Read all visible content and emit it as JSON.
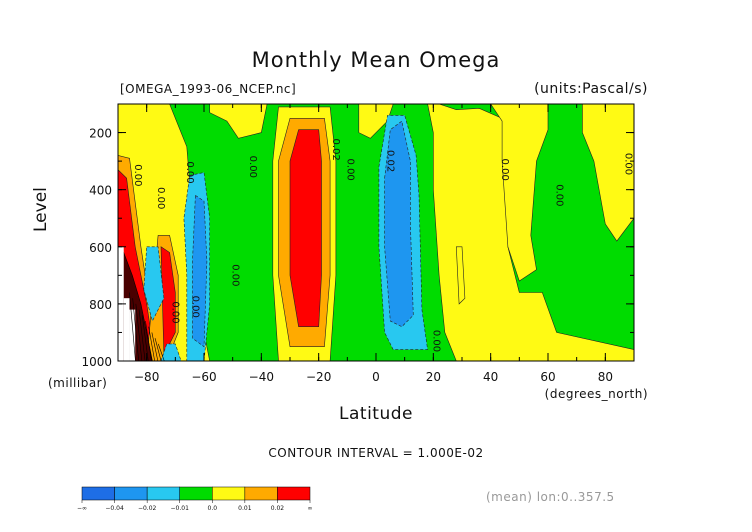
{
  "chart_data": {
    "type": "contour",
    "title": "Monthly Mean Omega",
    "file_label": "[OMEGA_1993-06_NCEP.nc]",
    "units_label": "(units:Pascal/s)",
    "ylabel": "Level",
    "ylabel_units": "(millibar)",
    "xlabel": "Latitude",
    "xlabel_units": "(degrees_north)",
    "xlim": [
      -90,
      90
    ],
    "ylim": [
      1000,
      100
    ],
    "x_ticks": [
      -80,
      -60,
      -40,
      -20,
      0,
      20,
      40,
      60,
      80
    ],
    "x_tick_labels": [
      "-80",
      "-60",
      "-40",
      "-20",
      "0",
      "20",
      "40",
      "60",
      "80"
    ],
    "y_ticks": [
      200,
      400,
      600,
      800,
      1000
    ],
    "y_tick_labels": [
      "200",
      "400",
      "600",
      "800",
      "1000"
    ],
    "contour_interval_text": "CONTOUR INTERVAL = 1.000E-02",
    "mean_text": "(mean) lon:0..357.5",
    "levels": [
      -0.04,
      -0.02,
      -0.01,
      0.0,
      0.01,
      0.02
    ],
    "colorbar": {
      "colors": [
        "#1e6ee6",
        "#1e96f0",
        "#28c8f0",
        "#00dc00",
        "#fffa14",
        "#ffaa00",
        "#ff0000"
      ],
      "labels": [
        "-∞",
        "-0.04",
        "-0.02",
        "-0.01",
        "0.0",
        "0.01",
        "0.02",
        "∞"
      ]
    },
    "bands": [
      {
        "range": [
          0.0,
          0.01
        ],
        "color": "#fffa14",
        "poly": [
          [
            -90,
            100
          ],
          [
            -72,
            100
          ],
          [
            -66,
            250
          ],
          [
            -64,
            500
          ],
          [
            -60,
            900
          ],
          [
            -58,
            1000
          ],
          [
            -90,
            1000
          ]
        ]
      },
      {
        "range": [
          0.0,
          0.01
        ],
        "color": "#fffa14",
        "poly": [
          [
            -58,
            100
          ],
          [
            -38,
            100
          ],
          [
            -40,
            200
          ],
          [
            -48,
            220
          ],
          [
            -52,
            160
          ],
          [
            -58,
            130
          ]
        ]
      },
      {
        "range": [
          0.0,
          0.01
        ],
        "color": "#fffa14",
        "poly": [
          [
            -6,
            100
          ],
          [
            6,
            100
          ],
          [
            4,
            160
          ],
          [
            -2,
            220
          ],
          [
            -6,
            200
          ]
        ]
      },
      {
        "range": [
          0.0,
          0.01
        ],
        "color": "#fffa14",
        "poly": [
          [
            18,
            100
          ],
          [
            22,
            100
          ],
          [
            28,
            120
          ],
          [
            36,
            115
          ],
          [
            44,
            150
          ],
          [
            46,
            250
          ],
          [
            46,
            600
          ],
          [
            50,
            760
          ],
          [
            58,
            760
          ],
          [
            63,
            900
          ],
          [
            90,
            960
          ],
          [
            90,
            1000
          ],
          [
            28,
            1000
          ],
          [
            24,
            900
          ],
          [
            22,
            700
          ],
          [
            20,
            400
          ],
          [
            20,
            200
          ]
        ]
      },
      {
        "range": [
          0.0,
          0.01
        ],
        "color": "#fffa14",
        "poly": [
          [
            40,
            100
          ],
          [
            60,
            100
          ],
          [
            60,
            190
          ],
          [
            56,
            300
          ],
          [
            54,
            560
          ],
          [
            56,
            680
          ],
          [
            50,
            720
          ],
          [
            46,
            600
          ],
          [
            44,
            300
          ],
          [
            44,
            160
          ]
        ]
      },
      {
        "range": [
          0.0,
          0.01
        ],
        "color": "#fffa14",
        "poly": [
          [
            72,
            100
          ],
          [
            90,
            100
          ],
          [
            90,
            500
          ],
          [
            84,
            580
          ],
          [
            80,
            520
          ],
          [
            76,
            300
          ],
          [
            72,
            200
          ]
        ]
      },
      {
        "range": [
          0.0,
          0.01
        ],
        "color": "#fffa14",
        "poly": [
          [
            -34,
            110
          ],
          [
            -16,
            110
          ],
          [
            -14,
            300
          ],
          [
            -14,
            700
          ],
          [
            -16,
            1000
          ],
          [
            -34,
            1000
          ],
          [
            -36,
            700
          ],
          [
            -36,
            300
          ]
        ]
      },
      {
        "range": [
          0.01,
          0.02
        ],
        "color": "#ffaa00",
        "poly": [
          [
            -30,
            150
          ],
          [
            -18,
            150
          ],
          [
            -16,
            300
          ],
          [
            -16,
            700
          ],
          [
            -18,
            950
          ],
          [
            -30,
            950
          ],
          [
            -34,
            700
          ],
          [
            -34,
            300
          ]
        ]
      },
      {
        "range": [
          0.02,
          0.03
        ],
        "color": "#ff0000",
        "poly": [
          [
            -27,
            190
          ],
          [
            -20,
            190
          ],
          [
            -19,
            300
          ],
          [
            -19,
            700
          ],
          [
            -20,
            880
          ],
          [
            -27,
            880
          ],
          [
            -30,
            700
          ],
          [
            -30,
            300
          ]
        ]
      },
      {
        "range": [
          0.01,
          0.02
        ],
        "color": "#ffaa00",
        "poly": [
          [
            -90,
            280
          ],
          [
            -86,
            290
          ],
          [
            -82,
            600
          ],
          [
            -79,
            800
          ],
          [
            -75,
            1000
          ],
          [
            -90,
            1000
          ]
        ]
      },
      {
        "range": [
          0.02,
          0.03
        ],
        "color": "#ff0000",
        "poly": [
          [
            -90,
            330
          ],
          [
            -87,
            360
          ],
          [
            -84,
            600
          ],
          [
            -80,
            800
          ],
          [
            -77,
            1000
          ],
          [
            -90,
            1000
          ]
        ]
      },
      {
        "range": [
          0.01,
          0.02
        ],
        "color": "#ffaa00",
        "poly": [
          [
            -76,
            560
          ],
          [
            -72,
            560
          ],
          [
            -69,
            700
          ],
          [
            -69,
            900
          ],
          [
            -73,
            1000
          ],
          [
            -80,
            1000
          ]
        ]
      },
      {
        "range": [
          0.02,
          0.03
        ],
        "color": "#ff0000",
        "poly": [
          [
            -75,
            600
          ],
          [
            -72,
            620
          ],
          [
            -70,
            760
          ],
          [
            -70,
            900
          ],
          [
            -74,
            980
          ]
        ]
      },
      {
        "range": [
          -0.01,
          0.0
        ],
        "color": "#28c8f0",
        "poly": [
          [
            -65,
            350
          ],
          [
            -60,
            340
          ],
          [
            -58,
            500
          ],
          [
            -58,
            800
          ],
          [
            -60,
            1000
          ],
          [
            -66,
            1000
          ],
          [
            -66,
            700
          ],
          [
            -67,
            500
          ]
        ]
      },
      {
        "range": [
          -0.02,
          -0.01
        ],
        "color": "#1e96f0",
        "poly": [
          [
            -63,
            420
          ],
          [
            -60,
            440
          ],
          [
            -59,
            650
          ],
          [
            -60,
            950
          ],
          [
            -64,
            920
          ],
          [
            -64,
            650
          ]
        ]
      },
      {
        "range": [
          -0.01,
          0.0
        ],
        "color": "#28c8f0",
        "poly": [
          [
            -80,
            600
          ],
          [
            -76,
            600
          ],
          [
            -74,
            780
          ],
          [
            -78,
            860
          ],
          [
            -81,
            750
          ]
        ]
      },
      {
        "range": [
          -0.01,
          0.0
        ],
        "color": "#28c8f0",
        "poly": [
          [
            -75,
            1000
          ],
          [
            -73,
            940
          ],
          [
            -70,
            940
          ],
          [
            -68,
            1000
          ]
        ]
      },
      {
        "range": [
          -0.01,
          0.0
        ],
        "color": "#28c8f0",
        "poly": [
          [
            1,
            320
          ],
          [
            4,
            140
          ],
          [
            10,
            140
          ],
          [
            14,
            280
          ],
          [
            15,
            420
          ],
          [
            16,
            820
          ],
          [
            18,
            960
          ],
          [
            6,
            960
          ],
          [
            3,
            900
          ],
          [
            1,
            600
          ]
        ]
      },
      {
        "range": [
          -0.02,
          -0.01
        ],
        "color": "#1e96f0",
        "poly": [
          [
            3,
            360
          ],
          [
            5,
            190
          ],
          [
            9,
            160
          ],
          [
            12,
            300
          ],
          [
            12,
            520
          ],
          [
            13,
            840
          ],
          [
            9,
            880
          ],
          [
            5,
            860
          ],
          [
            3,
            600
          ]
        ]
      },
      {
        "range": [
          0.0,
          0.01
        ],
        "color": "#fffa14",
        "poly": [
          [
            28,
            600
          ],
          [
            30,
            600
          ],
          [
            31,
            780
          ],
          [
            29,
            800
          ]
        ]
      }
    ],
    "contour_labels": [
      {
        "text": "0.00",
        "lat": -84,
        "lev": 350
      },
      {
        "text": "0.00",
        "lat": -76,
        "lev": 430
      },
      {
        "text": "0.00",
        "lat": -66,
        "lev": 340
      },
      {
        "text": "0.00",
        "lat": -44,
        "lev": 320
      },
      {
        "text": "0.00",
        "lat": -50,
        "lev": 700
      },
      {
        "text": "0.00",
        "lat": -71,
        "lev": 830
      },
      {
        "text": "0.00",
        "lat": -64,
        "lev": 810
      },
      {
        "text": "0.02",
        "lat": -15,
        "lev": 260
      },
      {
        "text": "0.00",
        "lat": -10,
        "lev": 330
      },
      {
        "text": "0.02",
        "lat": 4,
        "lev": 300
      },
      {
        "text": "0.00",
        "lat": 20,
        "lev": 930
      },
      {
        "text": "0.00",
        "lat": 44,
        "lev": 330
      },
      {
        "text": "0.00",
        "lat": 63,
        "lev": 420
      },
      {
        "text": "0.00",
        "lat": 87,
        "lev": 310
      }
    ]
  }
}
